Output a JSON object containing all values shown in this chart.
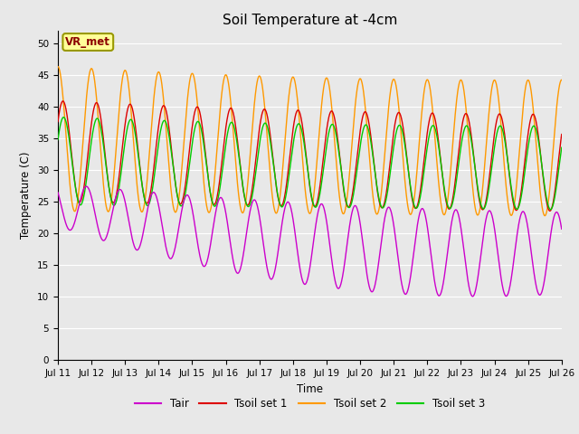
{
  "title": "Soil Temperature at -4cm",
  "xlabel": "Time",
  "ylabel": "Temperature (C)",
  "ylim": [
    0,
    52
  ],
  "yticks": [
    0,
    5,
    10,
    15,
    20,
    25,
    30,
    35,
    40,
    45,
    50
  ],
  "xtick_labels": [
    "Jul 11",
    "Jul 12",
    "Jul 13",
    "Jul 14",
    "Jul 15",
    "Jul 16",
    "Jul 17",
    "Jul 18",
    "Jul 19",
    "Jul 20",
    "Jul 21",
    "Jul 22",
    "Jul 23",
    "Jul 24",
    "Jul 25",
    "Jul 26"
  ],
  "colors": {
    "Tair": "#cc00cc",
    "Tsoil1": "#dd0000",
    "Tsoil2": "#ff9900",
    "Tsoil3": "#00cc00"
  },
  "legend_label": "VR_met",
  "bg_color": "#e8e8e8",
  "plot_bg_color": "#e8e8e8",
  "grid_color": "#ffffff",
  "n_points": 1440,
  "figsize": [
    6.4,
    4.8
  ],
  "dpi": 100
}
